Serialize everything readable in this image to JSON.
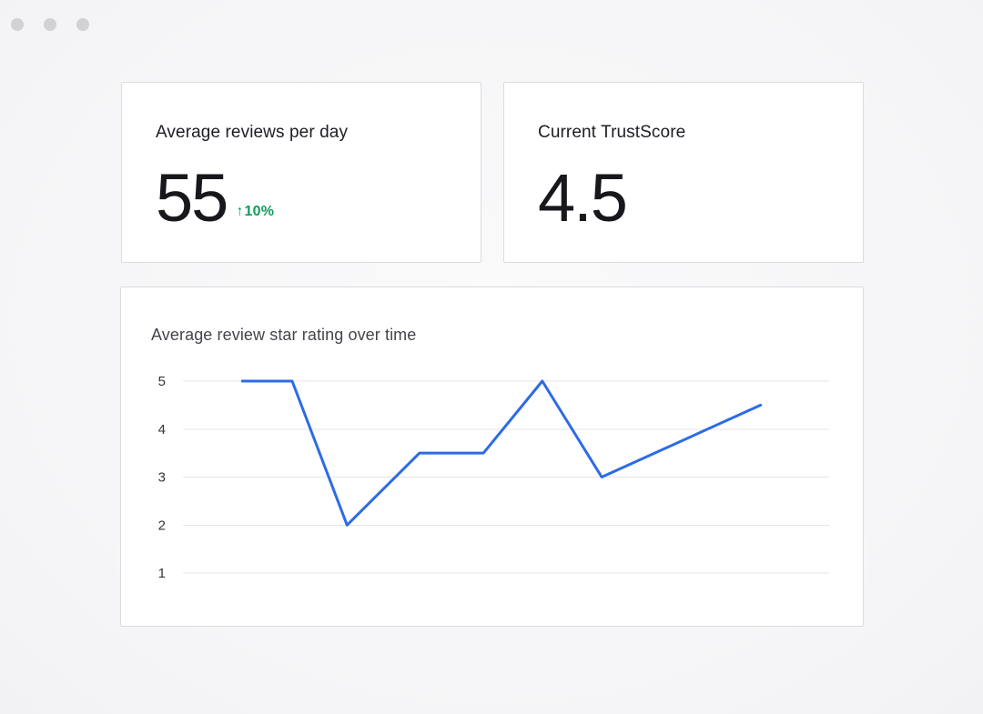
{
  "window": {
    "controls": "three-dots"
  },
  "stats": {
    "reviews_per_day": {
      "title": "Average reviews per day",
      "value": "55",
      "delta_arrow": "↑",
      "delta": "10%"
    },
    "trustscore": {
      "title": "Current TrustScore",
      "value": "4.5"
    }
  },
  "chart_card": {
    "title": "Average review star rating over time"
  },
  "chart_data": {
    "type": "line",
    "title": "Average review star rating over time",
    "values": [
      5,
      5,
      2,
      3.5,
      3.5,
      5,
      3,
      4.5
    ],
    "points": [
      {
        "x_fraction": 0.092,
        "rating": 5
      },
      {
        "x_fraction": 0.169,
        "rating": 5
      },
      {
        "x_fraction": 0.254,
        "rating": 2
      },
      {
        "x_fraction": 0.366,
        "rating": 3.5
      },
      {
        "x_fraction": 0.465,
        "rating": 3.5
      },
      {
        "x_fraction": 0.556,
        "rating": 5
      },
      {
        "x_fraction": 0.648,
        "rating": 3
      },
      {
        "x_fraction": 0.894,
        "rating": 4.5
      }
    ],
    "yticks": [
      5,
      4,
      3,
      2,
      1
    ],
    "ylim": [
      1,
      5
    ],
    "xlabel": "",
    "ylabel": "",
    "grid": true,
    "legend": "none",
    "line_color": "#2d6be5"
  },
  "colors": {
    "positive_green": "#0c9e5a",
    "line_blue": "#2d6be5",
    "card_border": "#dcdce0",
    "background": "#f6f6f8",
    "gridline": "#e5e5e8",
    "dot_gray": "#d2d2d6"
  }
}
